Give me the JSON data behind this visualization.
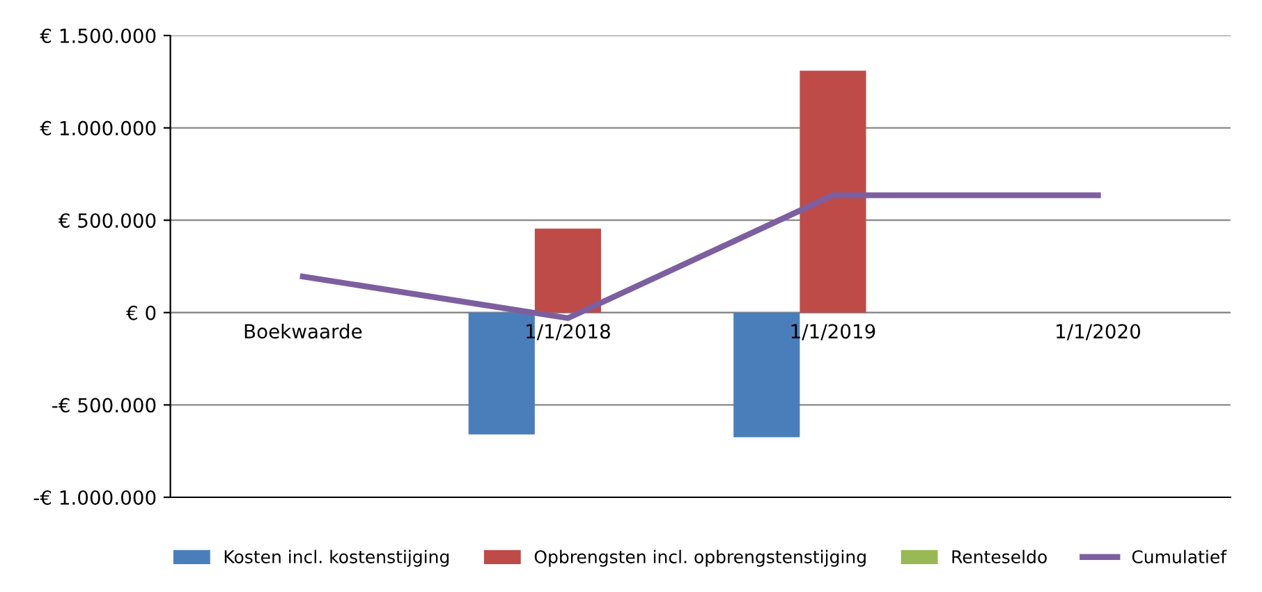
{
  "chart_data": {
    "type": "bar",
    "categories": [
      "Boekwaarde",
      "1/1/2018",
      "1/1/2019",
      "1/1/2020"
    ],
    "series": [
      {
        "name": "Kosten incl. kostenstijging",
        "color": "#4a7ebb",
        "values": [
          null,
          -660000,
          -675000,
          null
        ]
      },
      {
        "name": "Opbrengsten incl. opbrengstenstijging",
        "color": "#be4b48",
        "values": [
          null,
          455000,
          1310000,
          null
        ]
      },
      {
        "name": "Renteseldo",
        "color": "#98b954",
        "values": [
          null,
          null,
          null,
          null
        ]
      },
      {
        "name": "Cumulatief",
        "type": "line",
        "color": "#7d5fa0",
        "values": [
          195000,
          -30000,
          635000,
          635000
        ]
      }
    ],
    "ylim": [
      -1000000,
      1500000
    ],
    "yticks": [
      {
        "value": -1000000,
        "label": "-€ 1.000.000"
      },
      {
        "value": -500000,
        "label": "-€ 500.000"
      },
      {
        "value": 0,
        "label": "€ 0"
      },
      {
        "value": 500000,
        "label": "€ 500.000"
      },
      {
        "value": 1000000,
        "label": "€ 1.000.000"
      },
      {
        "value": 1500000,
        "label": "€ 1.500.000"
      }
    ],
    "grid": "y",
    "legend": "bottom",
    "marker": "none"
  }
}
